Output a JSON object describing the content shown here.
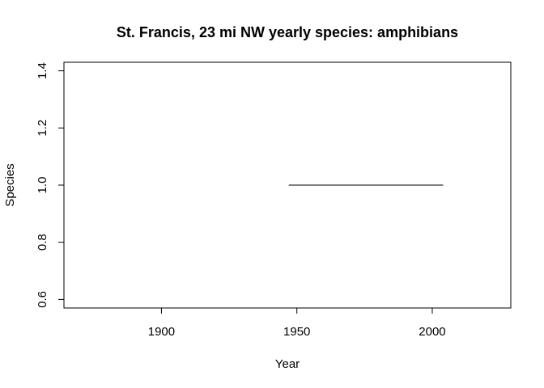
{
  "chart_data": {
    "type": "line",
    "title": "St. Francis, 23 mi NW yearly species: amphibians",
    "xlabel": "Year",
    "ylabel": "Species",
    "xlim": [
      1864,
      2029
    ],
    "ylim": [
      0.57,
      1.43
    ],
    "x_ticks": [
      1900,
      1950,
      2000
    ],
    "x_tick_labels": [
      "1900",
      "1950",
      "2000"
    ],
    "y_ticks": [
      0.6,
      0.8,
      1.0,
      1.2,
      1.4
    ],
    "y_tick_labels": [
      "0.6",
      "0.8",
      "1.0",
      "1.2",
      "1.4"
    ],
    "grid": false,
    "series": [
      {
        "x": [
          1947,
          2004
        ],
        "y": [
          1.0,
          1.0
        ],
        "color": "#000000"
      }
    ]
  }
}
